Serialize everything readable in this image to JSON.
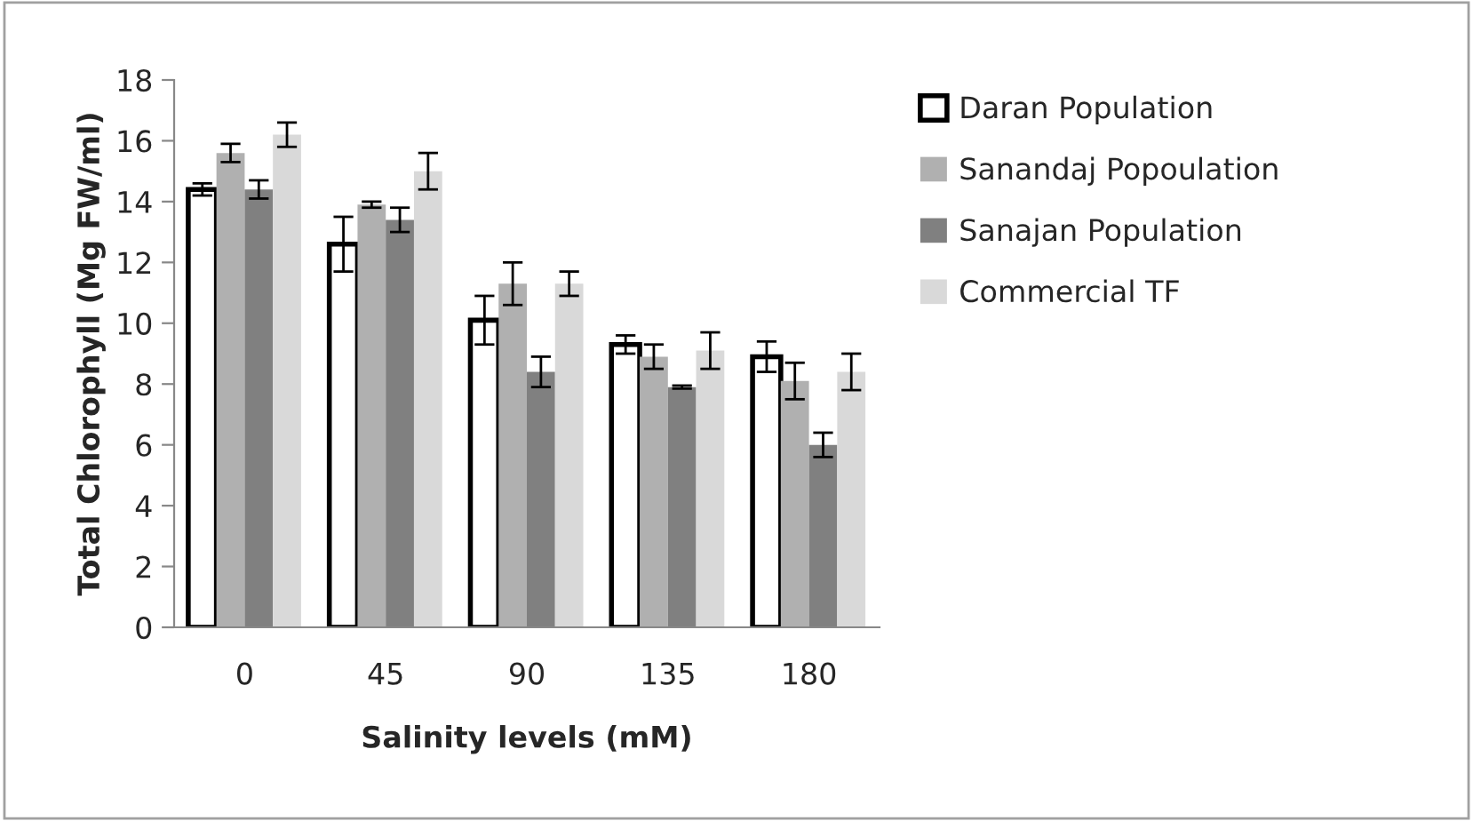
{
  "chart_data": {
    "type": "bar",
    "xlabel": "Salinity levels (mM)",
    "ylabel": "Total Chlorophyll (Mg FW/ml)",
    "categories": [
      "0",
      "45",
      "90",
      "135",
      "180"
    ],
    "series": [
      {
        "name": "Daran Population",
        "color": "#ffffff",
        "values": [
          14.4,
          12.6,
          10.1,
          9.3,
          8.9
        ],
        "errors": [
          0.2,
          0.9,
          0.8,
          0.3,
          0.5
        ]
      },
      {
        "name": "Sanandaj Popoulation",
        "color": "#b0b0b0",
        "values": [
          15.6,
          13.9,
          11.3,
          8.9,
          8.1
        ],
        "errors": [
          0.3,
          0.1,
          0.7,
          0.4,
          0.6
        ]
      },
      {
        "name": "Sanajan Population",
        "color": "#808080",
        "values": [
          14.4,
          13.4,
          8.4,
          7.9,
          6.0
        ],
        "errors": [
          0.3,
          0.4,
          0.5,
          0.05,
          0.4
        ]
      },
      {
        "name": "Commercial TF",
        "color": "#d9d9d9",
        "values": [
          16.2,
          15.0,
          11.3,
          9.1,
          8.4
        ],
        "errors": [
          0.4,
          0.6,
          0.4,
          0.6,
          0.6
        ]
      }
    ],
    "ylim": [
      0,
      18
    ],
    "yticks": [
      0,
      2,
      4,
      6,
      8,
      10,
      12,
      14,
      16,
      18
    ],
    "grid": false,
    "legend": "right"
  }
}
